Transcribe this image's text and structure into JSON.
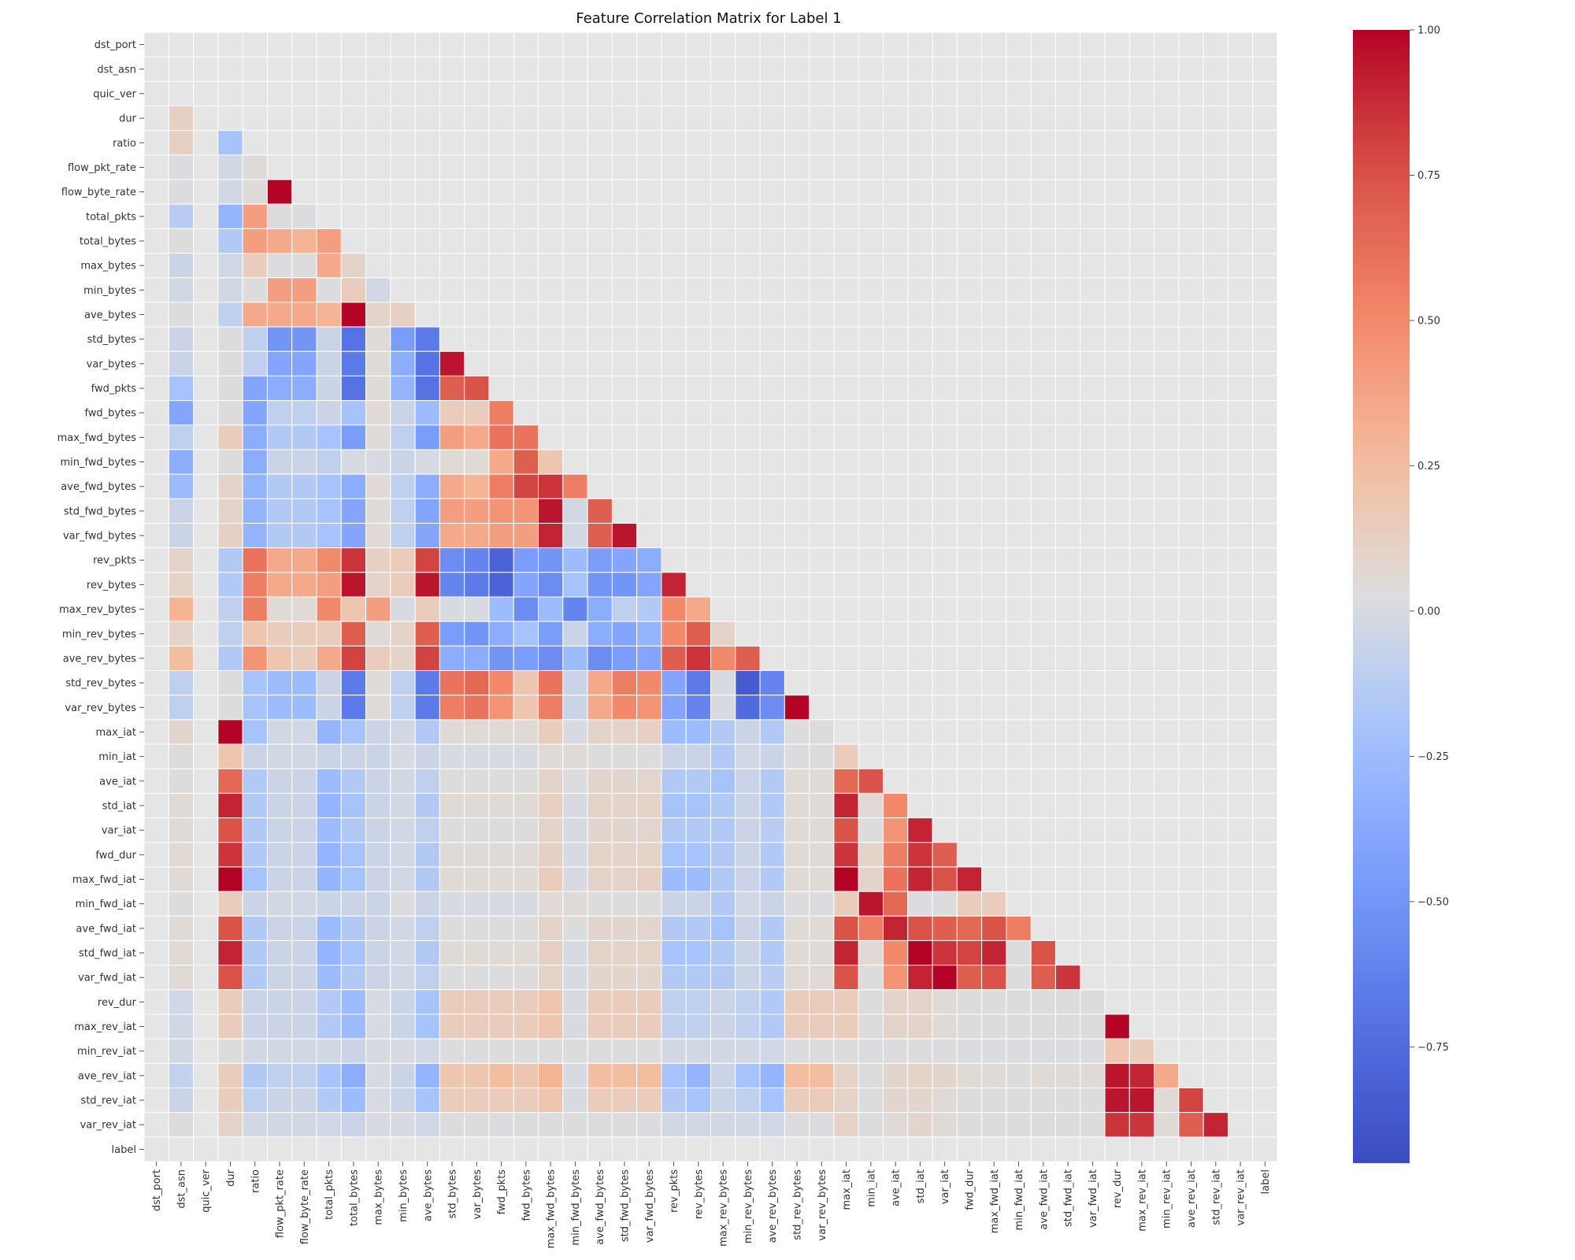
{
  "chart_data": {
    "type": "heatmap",
    "title": "Feature Correlation Matrix for Label 1",
    "mask": "lower-triangle",
    "colormap": "coolwarm",
    "vmin": -0.95,
    "vmax": 1.0,
    "colorbar_ticks": [
      "1.00",
      "0.75",
      "0.50",
      "0.25",
      "0.00",
      "−0.25",
      "−0.50",
      "−0.75"
    ],
    "colorbar_tick_values": [
      1.0,
      0.75,
      0.5,
      0.25,
      0.0,
      -0.25,
      -0.5,
      -0.75
    ],
    "labels": [
      "dst_port",
      "dst_asn",
      "quic_ver",
      "dur",
      "ratio",
      "flow_pkt_rate",
      "flow_byte_rate",
      "total_pkts",
      "total_bytes",
      "max_bytes",
      "min_bytes",
      "ave_bytes",
      "std_bytes",
      "var_bytes",
      "fwd_pkts",
      "fwd_bytes",
      "max_fwd_bytes",
      "min_fwd_bytes",
      "ave_fwd_bytes",
      "std_fwd_bytes",
      "var_fwd_bytes",
      "rev_pkts",
      "rev_bytes",
      "max_rev_bytes",
      "min_rev_bytes",
      "ave_rev_bytes",
      "std_rev_bytes",
      "var_rev_bytes",
      "max_iat",
      "min_iat",
      "ave_iat",
      "std_iat",
      "var_iat",
      "fwd_dur",
      "max_fwd_iat",
      "min_fwd_iat",
      "ave_fwd_iat",
      "std_fwd_iat",
      "var_fwd_iat",
      "rev_dur",
      "max_rev_iat",
      "min_rev_iat",
      "ave_rev_iat",
      "std_rev_iat",
      "var_rev_iat",
      "label"
    ],
    "rows": [
      [],
      [
        null
      ],
      [
        null,
        null
      ],
      [
        null,
        0.12,
        null
      ],
      [
        null,
        0.12,
        null,
        -0.2
      ],
      [
        null,
        0.02,
        null,
        -0.02,
        0.04
      ],
      [
        null,
        0.02,
        null,
        -0.02,
        0.04,
        1.0
      ],
      [
        null,
        -0.12,
        null,
        -0.3,
        0.4,
        0.03,
        0.02
      ],
      [
        null,
        0.03,
        null,
        -0.15,
        0.4,
        0.35,
        0.3,
        0.4
      ],
      [
        null,
        -0.05,
        null,
        -0.03,
        0.15,
        0.02,
        0.02,
        0.35,
        0.1
      ],
      [
        null,
        -0.02,
        null,
        -0.02,
        0.02,
        0.4,
        0.4,
        0.02,
        0.15,
        -0.02
      ],
      [
        null,
        0.03,
        null,
        -0.1,
        0.35,
        0.35,
        0.35,
        0.3,
        1.0,
        0.1,
        0.12
      ],
      [
        null,
        -0.05,
        null,
        0.03,
        -0.1,
        -0.5,
        -0.5,
        -0.05,
        -0.7,
        0.05,
        -0.45,
        -0.65
      ],
      [
        null,
        -0.05,
        null,
        0.03,
        -0.1,
        -0.4,
        -0.4,
        -0.05,
        -0.65,
        0.05,
        -0.35,
        -0.7,
        0.95
      ],
      [
        null,
        -0.2,
        null,
        0.03,
        -0.4,
        -0.35,
        -0.35,
        -0.05,
        -0.7,
        0.05,
        -0.3,
        -0.7,
        0.7,
        0.75
      ],
      [
        null,
        -0.4,
        null,
        0.03,
        -0.4,
        -0.1,
        -0.1,
        -0.05,
        -0.2,
        0.05,
        -0.05,
        -0.25,
        0.15,
        0.15,
        0.55
      ],
      [
        null,
        -0.1,
        null,
        0.15,
        -0.35,
        -0.15,
        -0.15,
        -0.2,
        -0.45,
        0.05,
        -0.1,
        -0.45,
        0.4,
        0.35,
        0.6,
        0.6
      ],
      [
        null,
        -0.35,
        null,
        0.03,
        -0.35,
        -0.05,
        -0.05,
        -0.1,
        0.0,
        0.0,
        -0.05,
        0.0,
        0.05,
        0.05,
        0.35,
        0.7,
        0.2
      ],
      [
        null,
        -0.25,
        null,
        0.1,
        -0.3,
        -0.15,
        -0.15,
        -0.2,
        -0.35,
        0.05,
        -0.1,
        -0.35,
        0.35,
        0.3,
        0.55,
        0.8,
        0.85,
        0.55
      ],
      [
        null,
        -0.05,
        null,
        0.1,
        -0.3,
        -0.15,
        -0.15,
        -0.2,
        -0.4,
        0.05,
        -0.1,
        -0.4,
        0.4,
        0.4,
        0.45,
        0.45,
        0.95,
        -0.02,
        0.7
      ],
      [
        null,
        -0.05,
        null,
        0.12,
        -0.3,
        -0.15,
        -0.15,
        -0.2,
        -0.4,
        0.05,
        -0.1,
        -0.4,
        0.35,
        0.35,
        0.4,
        0.4,
        0.9,
        -0.02,
        0.7,
        0.95
      ],
      [
        null,
        0.1,
        null,
        -0.15,
        0.6,
        0.35,
        0.35,
        0.5,
        0.85,
        0.12,
        0.15,
        0.8,
        -0.55,
        -0.6,
        -0.8,
        -0.45,
        -0.5,
        -0.25,
        -0.45,
        -0.4,
        -0.35
      ],
      [
        null,
        0.1,
        null,
        -0.15,
        0.55,
        0.35,
        0.35,
        0.4,
        0.95,
        0.1,
        0.15,
        0.95,
        -0.6,
        -0.65,
        -0.8,
        -0.4,
        -0.55,
        -0.2,
        -0.5,
        -0.5,
        -0.4,
        0.9
      ],
      [
        null,
        0.3,
        null,
        -0.1,
        0.55,
        0.05,
        0.05,
        0.5,
        0.2,
        0.4,
        0.0,
        0.15,
        0.0,
        0.0,
        -0.25,
        -0.55,
        -0.25,
        -0.6,
        -0.35,
        -0.1,
        -0.15,
        0.5,
        0.35
      ],
      [
        null,
        0.1,
        null,
        -0.1,
        0.2,
        0.15,
        0.15,
        0.15,
        0.7,
        0.05,
        0.1,
        0.7,
        -0.45,
        -0.5,
        -0.35,
        -0.2,
        -0.45,
        -0.05,
        -0.35,
        -0.4,
        -0.3,
        0.5,
        0.7,
        0.1
      ],
      [
        null,
        0.25,
        null,
        -0.15,
        0.45,
        0.2,
        0.15,
        0.35,
        0.8,
        0.15,
        0.1,
        0.8,
        -0.35,
        -0.35,
        -0.5,
        -0.45,
        -0.55,
        -0.25,
        -0.55,
        -0.45,
        -0.4,
        0.7,
        0.85,
        0.5,
        0.7
      ],
      [
        null,
        -0.1,
        null,
        0.03,
        -0.2,
        -0.25,
        -0.25,
        -0.05,
        -0.65,
        0.05,
        -0.1,
        -0.65,
        0.6,
        0.65,
        0.5,
        0.2,
        0.6,
        -0.05,
        0.35,
        0.55,
        0.5,
        -0.4,
        -0.65,
        0.0,
        -0.85,
        -0.6
      ],
      [
        null,
        -0.1,
        null,
        0.03,
        -0.2,
        -0.25,
        -0.25,
        -0.05,
        -0.65,
        0.05,
        -0.1,
        -0.65,
        0.55,
        0.6,
        0.45,
        0.2,
        0.55,
        -0.05,
        0.35,
        0.5,
        0.45,
        -0.4,
        -0.6,
        0.0,
        -0.75,
        -0.55,
        1.0
      ],
      [
        null,
        0.08,
        null,
        1.0,
        -0.2,
        -0.02,
        -0.02,
        -0.3,
        -0.2,
        -0.05,
        -0.02,
        -0.15,
        0.05,
        0.05,
        0.05,
        0.05,
        0.15,
        0.0,
        0.1,
        0.1,
        0.12,
        -0.25,
        -0.25,
        -0.15,
        -0.05,
        -0.15,
        0.03,
        0.03
      ],
      [
        null,
        0.03,
        null,
        0.2,
        -0.05,
        -0.02,
        -0.02,
        -0.05,
        -0.05,
        -0.05,
        0.0,
        -0.05,
        0.0,
        0.0,
        0.0,
        0.0,
        0.05,
        0.05,
        0.03,
        0.03,
        0.03,
        -0.05,
        -0.05,
        -0.15,
        -0.03,
        -0.05,
        0.02,
        0.02,
        0.15
      ],
      [
        null,
        0.03,
        null,
        0.65,
        -0.15,
        -0.05,
        -0.05,
        -0.25,
        -0.15,
        -0.05,
        -0.02,
        -0.1,
        0.03,
        0.03,
        0.03,
        0.03,
        0.1,
        0.03,
        0.08,
        0.08,
        0.08,
        -0.15,
        -0.15,
        -0.2,
        -0.05,
        -0.15,
        0.05,
        0.05,
        0.65,
        0.75
      ],
      [
        null,
        0.05,
        null,
        0.9,
        -0.15,
        -0.05,
        -0.05,
        -0.3,
        -0.2,
        -0.05,
        -0.02,
        -0.15,
        0.05,
        0.05,
        0.05,
        0.05,
        0.12,
        0.0,
        0.1,
        0.1,
        0.1,
        -0.2,
        -0.2,
        -0.15,
        -0.05,
        -0.15,
        0.05,
        0.05,
        0.9,
        0.05,
        0.5
      ],
      [
        null,
        0.05,
        null,
        0.75,
        -0.15,
        -0.05,
        -0.05,
        -0.25,
        -0.15,
        -0.05,
        -0.02,
        -0.1,
        0.03,
        0.03,
        0.03,
        0.03,
        0.1,
        0.0,
        0.08,
        0.08,
        0.08,
        -0.15,
        -0.15,
        -0.15,
        -0.05,
        -0.12,
        0.05,
        0.05,
        0.75,
        0.03,
        0.45,
        0.9
      ],
      [
        null,
        0.05,
        null,
        0.85,
        -0.15,
        -0.05,
        -0.05,
        -0.3,
        -0.2,
        -0.05,
        -0.02,
        -0.15,
        0.05,
        0.05,
        0.05,
        0.05,
        0.12,
        0.0,
        0.1,
        0.1,
        0.1,
        -0.2,
        -0.2,
        -0.15,
        -0.05,
        -0.15,
        0.05,
        0.05,
        0.85,
        0.1,
        0.55,
        0.85,
        0.7
      ],
      [
        null,
        0.05,
        null,
        1.0,
        -0.2,
        -0.05,
        -0.05,
        -0.3,
        -0.2,
        -0.05,
        -0.02,
        -0.15,
        0.05,
        0.05,
        0.05,
        0.05,
        0.15,
        0.0,
        0.1,
        0.1,
        0.12,
        -0.25,
        -0.25,
        -0.15,
        -0.05,
        -0.15,
        0.05,
        0.05,
        1.0,
        0.1,
        0.6,
        0.9,
        0.75,
        0.9
      ],
      [
        null,
        0.03,
        null,
        0.15,
        -0.05,
        -0.02,
        -0.02,
        -0.05,
        -0.05,
        -0.05,
        0.02,
        -0.05,
        0.0,
        0.0,
        0.0,
        0.0,
        0.05,
        0.05,
        0.03,
        0.03,
        0.03,
        -0.05,
        -0.05,
        -0.15,
        -0.03,
        -0.05,
        0.02,
        0.02,
        0.15,
        0.95,
        0.65,
        0.02,
        0.02,
        0.15,
        0.15
      ],
      [
        null,
        0.05,
        null,
        0.75,
        -0.15,
        -0.05,
        -0.05,
        -0.25,
        -0.15,
        -0.05,
        -0.02,
        -0.1,
        0.03,
        0.03,
        0.03,
        0.03,
        0.1,
        0.03,
        0.08,
        0.08,
        0.08,
        -0.15,
        -0.15,
        -0.2,
        -0.05,
        -0.15,
        0.05,
        0.05,
        0.75,
        0.55,
        0.9,
        0.75,
        0.7,
        0.65,
        0.75,
        0.55
      ],
      [
        null,
        0.05,
        null,
        0.9,
        -0.15,
        -0.05,
        -0.05,
        -0.3,
        -0.2,
        -0.05,
        -0.02,
        -0.15,
        0.05,
        0.05,
        0.05,
        0.05,
        0.12,
        0.0,
        0.1,
        0.1,
        0.1,
        -0.2,
        -0.2,
        -0.15,
        -0.05,
        -0.15,
        0.05,
        0.05,
        0.9,
        0.05,
        0.5,
        1.0,
        0.85,
        0.8,
        0.9,
        0.02,
        0.75
      ],
      [
        null,
        0.05,
        null,
        0.75,
        -0.15,
        -0.05,
        -0.05,
        -0.25,
        -0.15,
        -0.05,
        -0.02,
        -0.1,
        0.03,
        0.03,
        0.03,
        0.03,
        0.1,
        0.0,
        0.08,
        0.08,
        0.08,
        -0.15,
        -0.15,
        -0.15,
        -0.05,
        -0.12,
        0.05,
        0.05,
        0.75,
        0.03,
        0.45,
        0.9,
        1.0,
        0.7,
        0.75,
        0.02,
        0.7,
        0.85
      ],
      [
        null,
        -0.03,
        null,
        0.15,
        -0.05,
        -0.05,
        -0.05,
        -0.15,
        -0.25,
        0.0,
        -0.05,
        -0.2,
        0.15,
        0.15,
        0.15,
        0.15,
        0.2,
        0.0,
        0.15,
        0.15,
        0.15,
        -0.1,
        -0.1,
        -0.05,
        -0.1,
        -0.15,
        0.15,
        0.15,
        0.15,
        0.03,
        0.1,
        0.1,
        0.05,
        0.03,
        0.03,
        0.03,
        0.03,
        0.03,
        0.03
      ],
      [
        null,
        -0.03,
        null,
        0.15,
        -0.05,
        -0.05,
        -0.05,
        -0.15,
        -0.25,
        0.0,
        -0.05,
        -0.2,
        0.15,
        0.15,
        0.15,
        0.15,
        0.2,
        0.0,
        0.15,
        0.15,
        0.15,
        -0.1,
        -0.1,
        -0.05,
        -0.1,
        -0.15,
        0.15,
        0.15,
        0.15,
        0.03,
        0.1,
        0.1,
        0.05,
        0.03,
        0.03,
        0.03,
        0.03,
        0.03,
        0.03,
        1.0
      ],
      [
        null,
        -0.02,
        null,
        0.03,
        -0.02,
        -0.02,
        -0.02,
        -0.03,
        -0.05,
        0.0,
        0.0,
        -0.03,
        0.02,
        0.02,
        0.02,
        0.02,
        0.03,
        0.02,
        0.02,
        0.02,
        0.02,
        -0.02,
        -0.02,
        -0.02,
        -0.02,
        -0.03,
        0.02,
        0.02,
        0.03,
        0.02,
        0.02,
        0.02,
        0.02,
        0.02,
        0.02,
        0.02,
        0.02,
        0.02,
        0.02,
        0.2,
        0.15
      ],
      [
        null,
        -0.08,
        null,
        0.15,
        -0.15,
        -0.1,
        -0.1,
        -0.2,
        -0.35,
        0.0,
        -0.05,
        -0.3,
        0.2,
        0.2,
        0.25,
        0.2,
        0.3,
        0.0,
        0.25,
        0.25,
        0.25,
        -0.2,
        -0.3,
        -0.05,
        -0.2,
        -0.3,
        0.25,
        0.25,
        0.1,
        0.03,
        0.08,
        0.1,
        0.08,
        0.05,
        0.05,
        0.03,
        0.05,
        0.05,
        0.05,
        0.95,
        0.9,
        0.35
      ],
      [
        null,
        -0.05,
        null,
        0.15,
        -0.1,
        -0.05,
        -0.05,
        -0.15,
        -0.25,
        0.0,
        -0.05,
        -0.2,
        0.15,
        0.15,
        0.15,
        0.15,
        0.2,
        0.0,
        0.15,
        0.15,
        0.15,
        -0.15,
        -0.2,
        -0.05,
        -0.1,
        -0.2,
        0.15,
        0.15,
        0.1,
        0.03,
        0.08,
        0.08,
        0.05,
        0.03,
        0.03,
        0.03,
        0.03,
        0.03,
        0.03,
        0.95,
        0.95,
        0.05,
        0.8
      ],
      [
        null,
        0.02,
        null,
        0.1,
        -0.02,
        -0.02,
        -0.02,
        -0.03,
        -0.05,
        0.0,
        0.0,
        -0.03,
        0.02,
        0.02,
        0.02,
        0.02,
        0.03,
        0.02,
        0.02,
        0.02,
        0.02,
        -0.02,
        -0.02,
        -0.02,
        -0.02,
        -0.03,
        0.02,
        0.02,
        0.1,
        0.02,
        0.05,
        0.08,
        0.05,
        0.02,
        0.02,
        0.02,
        0.02,
        0.02,
        0.02,
        0.85,
        0.85,
        0.05,
        0.7,
        0.9
      ],
      [
        null,
        null,
        null,
        null,
        null,
        null,
        null,
        null,
        null,
        null,
        null,
        null,
        null,
        null,
        null,
        null,
        null,
        null,
        null,
        null,
        null,
        null,
        null,
        null,
        null,
        null,
        null,
        null,
        null,
        null,
        null,
        null,
        null,
        null,
        null,
        null,
        null,
        null,
        null,
        null,
        null,
        null,
        null,
        null,
        null
      ]
    ]
  }
}
